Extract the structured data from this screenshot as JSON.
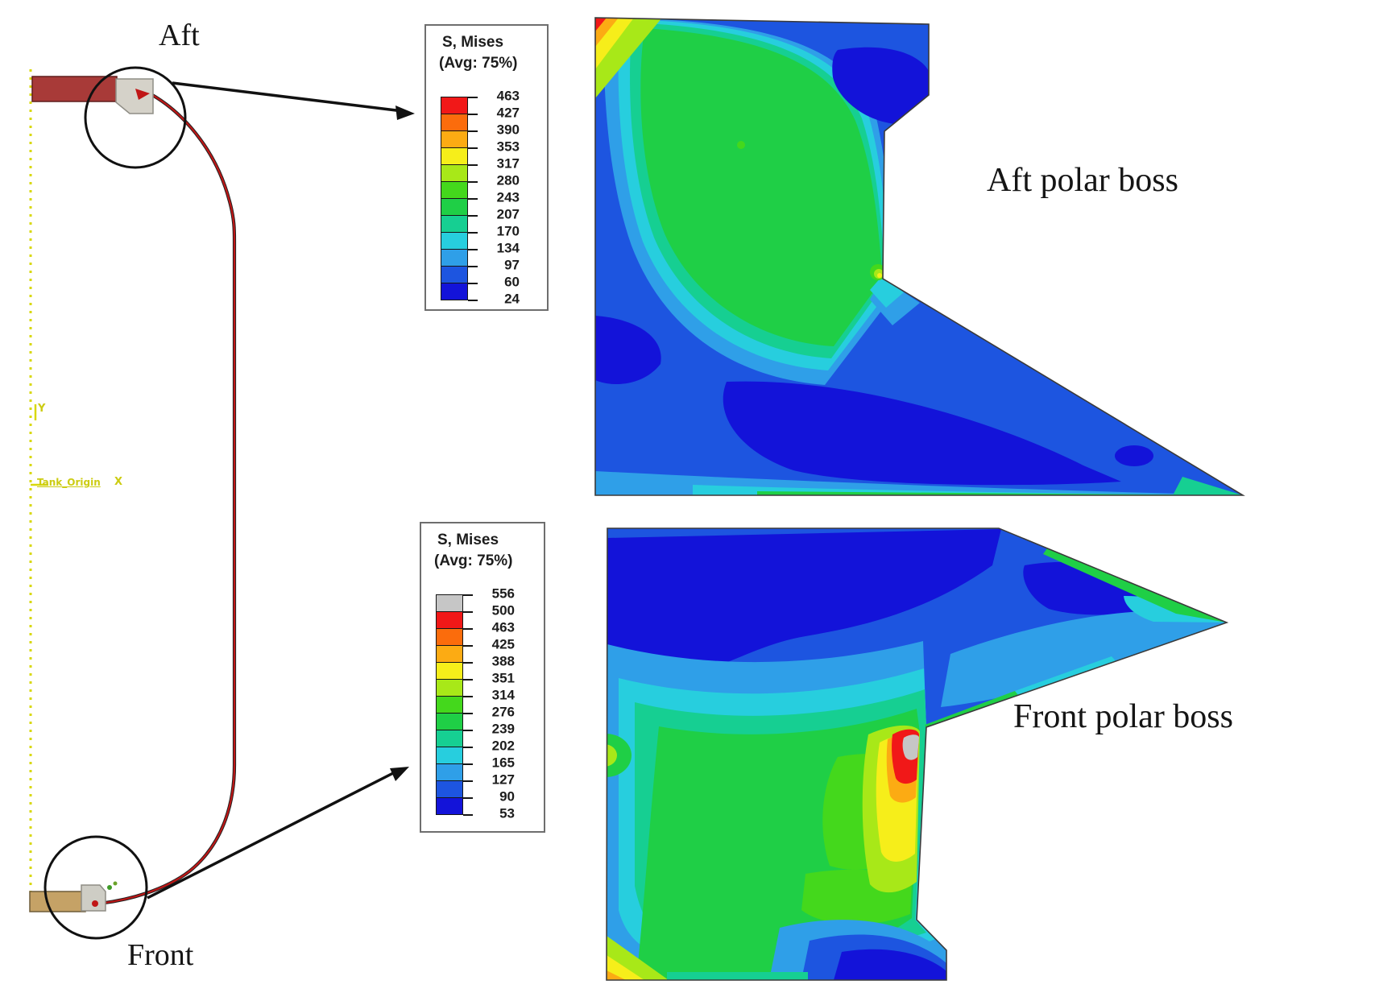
{
  "figure": {
    "schematic": {
      "aft_label": "Aft",
      "front_label": "Front",
      "axis_y_label": "Y",
      "axis_x_label": "X",
      "origin_label": "Tank_Origin"
    },
    "plots": [
      {
        "label": "Aft polar boss"
      },
      {
        "label": "Front polar boss"
      }
    ]
  },
  "legends": [
    {
      "title": "S, Mises",
      "subtitle": "(Avg: 75%)",
      "values": [
        "463",
        "427",
        "390",
        "353",
        "317",
        "280",
        "243",
        "207",
        "170",
        "134",
        "97",
        "60",
        "24"
      ],
      "colors": [
        "#f11818",
        "#fb6c0c",
        "#fcab13",
        "#f6ee1a",
        "#a8e818",
        "#44d81c",
        "#1fcf46",
        "#16cf92",
        "#27cede",
        "#2f9fe8",
        "#1d55e0",
        "#1313d9"
      ]
    },
    {
      "title": "S, Mises",
      "subtitle": "(Avg: 75%)",
      "values": [
        "556",
        "500",
        "463",
        "425",
        "388",
        "351",
        "314",
        "276",
        "239",
        "202",
        "165",
        "127",
        "90",
        "53"
      ],
      "colors": [
        "#c6c6c6",
        "#f11818",
        "#fb6c0c",
        "#fcab13",
        "#f6ee1a",
        "#a8e818",
        "#44d81c",
        "#1fcf46",
        "#16cf92",
        "#27cede",
        "#2f9fe8",
        "#1d55e0",
        "#1313d9"
      ]
    }
  ],
  "palette": {
    "bands": [
      "#1313d9",
      "#1d55e0",
      "#2f9fe8",
      "#27cede",
      "#16cf92",
      "#1fcf46",
      "#44d81c",
      "#a8e818",
      "#f6ee1a",
      "#fcab13",
      "#fb6c0c",
      "#f11818"
    ],
    "above_max_grey": "#c6c6c6",
    "background": "#ffffff",
    "schematic_red": "#c01616",
    "aft_boss_fill": "#a83a38",
    "front_boss_fill": "#c5a266",
    "fitting_grey": "#d5d2c9",
    "axis_yellow": "#d8d80c",
    "outline": "#3a3a3a"
  },
  "chart_data": [
    {
      "type": "heatmap",
      "subtype": "fea-stress-contour",
      "title": "Aft polar boss",
      "field": "S, Mises",
      "averaging": "(Avg: 75%)",
      "contour_levels": [
        24,
        60,
        97,
        134,
        170,
        207,
        243,
        280,
        317,
        353,
        390,
        427,
        463
      ],
      "min": 24,
      "max": 463,
      "legend_position": "left",
      "notes": "von Mises stress contour of aft polar boss cross-section; maximum (red) at upper-left corner, mostly blue/green field"
    },
    {
      "type": "heatmap",
      "subtype": "fea-stress-contour",
      "title": "Front polar boss",
      "field": "S, Mises",
      "averaging": "(Avg: 75%)",
      "contour_levels": [
        53,
        90,
        127,
        165,
        202,
        239,
        276,
        314,
        351,
        388,
        425,
        463,
        500,
        556
      ],
      "min": 53,
      "max": 556,
      "above_limit_color": "grey",
      "legend_position": "left",
      "notes": "von Mises stress contour of front polar boss cross-section; maximum (grey >500) at re-entrant notch corner with red/orange/yellow gradient"
    }
  ]
}
